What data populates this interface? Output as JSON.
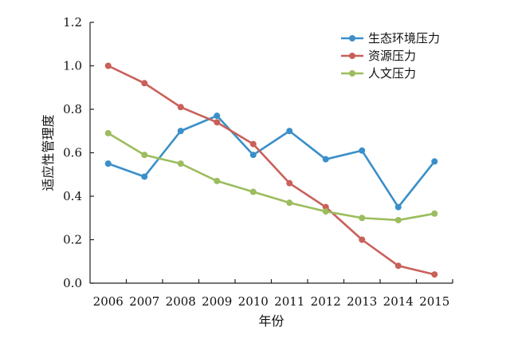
{
  "chart_data": {
    "type": "line",
    "title": "",
    "xlabel": "年份",
    "ylabel": "适应性管理度",
    "categories": [
      "2006",
      "2007",
      "2008",
      "2009",
      "2010",
      "2011",
      "2012",
      "2013",
      "2014",
      "2015"
    ],
    "ylim": [
      0,
      1.2
    ],
    "yticks": [
      "0.0",
      "0.2",
      "0.4",
      "0.6",
      "0.8",
      "1.0",
      "1.2"
    ],
    "grid": false,
    "legend_position": "top-right",
    "series": [
      {
        "name": "生态环境压力",
        "color": "#3a8fc9",
        "values": [
          0.55,
          0.49,
          0.7,
          0.77,
          0.59,
          0.7,
          0.57,
          0.61,
          0.35,
          0.56
        ]
      },
      {
        "name": "资源压力",
        "color": "#c9605a",
        "values": [
          1.0,
          0.92,
          0.81,
          0.74,
          0.64,
          0.46,
          0.35,
          0.2,
          0.08,
          0.04
        ]
      },
      {
        "name": "人文压力",
        "color": "#9cbd5e",
        "values": [
          0.69,
          0.59,
          0.55,
          0.47,
          0.42,
          0.37,
          0.33,
          0.3,
          0.29,
          0.32
        ]
      }
    ]
  }
}
